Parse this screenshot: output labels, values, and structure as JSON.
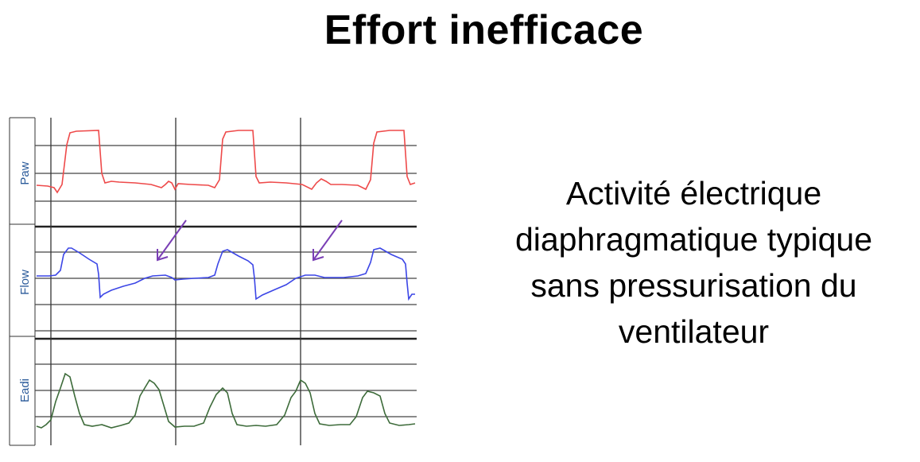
{
  "slide": {
    "title": "Effort inefficace",
    "caption_lines": [
      "Activité électrique",
      "diaphragmatique typique",
      "sans pressurisation du",
      "ventilateur"
    ]
  },
  "waveforms": {
    "channels": [
      {
        "id": "paw",
        "label": "Paw",
        "color": "#ee4a4a"
      },
      {
        "id": "flow",
        "label": "Flow",
        "color": "#3c46e6"
      },
      {
        "id": "eadi",
        "label": "Eadi",
        "color": "#3d6b3a"
      }
    ],
    "annotation_color": "#7a3fb5"
  }
}
